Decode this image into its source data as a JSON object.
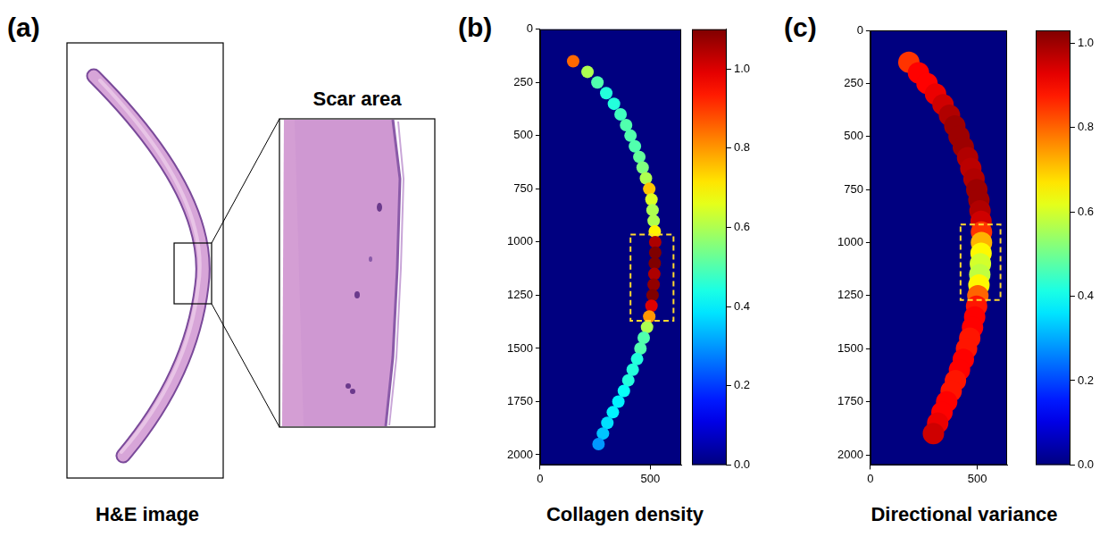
{
  "panel_a": {
    "label": "(a)",
    "inset_title": "Scar area",
    "caption": "H&E image"
  },
  "chart_data": [
    {
      "type": "heatmap",
      "panel_label": "(b)",
      "title": "Collagen density",
      "xlim": [
        0,
        640
      ],
      "xticks": [
        0,
        500
      ],
      "ylim": [
        0,
        2048
      ],
      "yticks": [
        0,
        250,
        500,
        750,
        1000,
        1250,
        1500,
        1750,
        2000
      ],
      "cells": {
        "y": [
          150,
          200,
          250,
          300,
          350,
          400,
          450,
          500,
          550,
          600,
          650,
          700,
          750,
          800,
          850,
          900,
          950,
          1000,
          1050,
          1100,
          1150,
          1200,
          1250,
          1300,
          1350,
          1400,
          1450,
          1500,
          1550,
          1600,
          1650,
          1700,
          1750,
          1800,
          1850,
          1900,
          1950
        ],
        "x": [
          150,
          215,
          260,
          300,
          335,
          365,
          390,
          410,
          430,
          450,
          465,
          480,
          495,
          505,
          510,
          515,
          520,
          522,
          522,
          520,
          518,
          515,
          510,
          505,
          495,
          485,
          470,
          455,
          440,
          420,
          400,
          380,
          355,
          330,
          305,
          285,
          265
        ],
        "values": [
          0.85,
          0.6,
          0.5,
          0.45,
          0.45,
          0.48,
          0.5,
          0.5,
          0.5,
          0.52,
          0.55,
          0.6,
          0.75,
          0.65,
          0.6,
          0.6,
          0.7,
          1.05,
          1.1,
          1.1,
          1.05,
          1.08,
          1.1,
          1.0,
          0.8,
          0.6,
          0.5,
          0.5,
          0.45,
          0.45,
          0.45,
          0.42,
          0.4,
          0.4,
          0.38,
          0.35,
          0.3
        ]
      },
      "colorbar": {
        "range": [
          0,
          1.1
        ],
        "ticks": [
          {
            "value": 0,
            "label": "0.0"
          },
          0.2,
          0.4,
          0.6,
          0.8,
          {
            "value": 1,
            "label": "1.0"
          }
        ]
      },
      "box": {
        "x": [
          410,
          605
        ],
        "y": [
          965,
          1370
        ],
        "color": "#ffd92f",
        "line_style": "dashed"
      }
    },
    {
      "type": "heatmap",
      "panel_label": "(c)",
      "title": "Directional variance",
      "xlim": [
        0,
        640
      ],
      "xticks": [
        0,
        500
      ],
      "ylim": [
        0,
        2048
      ],
      "yticks": [
        0,
        250,
        500,
        750,
        1000,
        1250,
        1500,
        1750,
        2000
      ],
      "cells": {
        "y": [
          150,
          200,
          250,
          300,
          350,
          400,
          450,
          500,
          550,
          600,
          650,
          700,
          750,
          800,
          850,
          900,
          950,
          1000,
          1050,
          1100,
          1150,
          1200,
          1250,
          1300,
          1350,
          1400,
          1450,
          1500,
          1550,
          1600,
          1650,
          1700,
          1750,
          1800,
          1850,
          1900
        ],
        "x": [
          180,
          225,
          265,
          305,
          340,
          370,
          395,
          415,
          435,
          455,
          470,
          485,
          498,
          508,
          513,
          518,
          520,
          520,
          518,
          515,
          512,
          508,
          503,
          497,
          488,
          478,
          465,
          450,
          435,
          417,
          398,
          378,
          357,
          335,
          315,
          295
        ],
        "values": [
          0.85,
          0.9,
          0.9,
          0.92,
          0.95,
          0.98,
          1.0,
          1.0,
          1.0,
          0.98,
          0.97,
          0.98,
          1.0,
          1.0,
          0.98,
          0.95,
          0.85,
          0.72,
          0.65,
          0.6,
          0.58,
          0.65,
          0.8,
          0.88,
          0.9,
          0.9,
          0.88,
          0.88,
          0.9,
          0.9,
          0.88,
          0.88,
          0.9,
          0.9,
          0.92,
          0.95
        ]
      },
      "colorbar": {
        "range": [
          0,
          1.03
        ],
        "ticks": [
          {
            "value": 0,
            "label": "0.0"
          },
          0.2,
          0.4,
          0.6,
          0.8,
          {
            "value": 1,
            "label": "1.0"
          }
        ]
      },
      "box": {
        "x": [
          422,
          609
        ],
        "y": [
          915,
          1270
        ],
        "color": "#ffd92f",
        "line_style": "dashed"
      }
    }
  ]
}
